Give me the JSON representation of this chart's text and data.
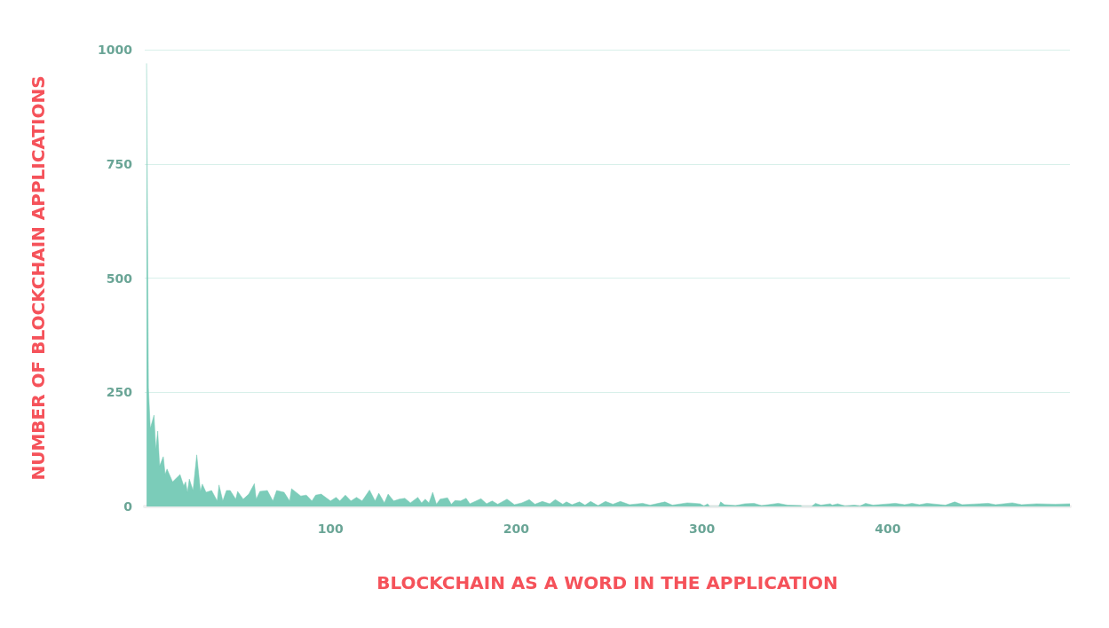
{
  "chart_data": {
    "type": "area",
    "xlabel": "BLOCKCHAIN AS A WORD IN THE APPLICATION",
    "ylabel": "NUMBER OF BLOCKCHAIN APPLICATIONS",
    "x": [
      1,
      2,
      3,
      5,
      6,
      7,
      8,
      10,
      11,
      12,
      15,
      19,
      21,
      22,
      23,
      24,
      26,
      28,
      30,
      31,
      33,
      36,
      39,
      40,
      42,
      44,
      46,
      49,
      50,
      53,
      56,
      59,
      60,
      62,
      66,
      69,
      71,
      75,
      78,
      79,
      84,
      87,
      90,
      92,
      95,
      100,
      103,
      105,
      108,
      111,
      114,
      117,
      121,
      124,
      126,
      129,
      131,
      134,
      137,
      140,
      143,
      147,
      149,
      151,
      153,
      155,
      157,
      159,
      163,
      165,
      167,
      170,
      173,
      175,
      181,
      184,
      187,
      190,
      195,
      199,
      203,
      207,
      210,
      214,
      218,
      221,
      225,
      227,
      230,
      234,
      237,
      240,
      244,
      248,
      252,
      256,
      261,
      268,
      272,
      280,
      284,
      292,
      299,
      301,
      303,
      304,
      309,
      310,
      312,
      318,
      323,
      328,
      332,
      341,
      346,
      353,
      354,
      359,
      361,
      364,
      369,
      370,
      373,
      377,
      382,
      385,
      388,
      392,
      404,
      409,
      413,
      417,
      421,
      431,
      436,
      440,
      454,
      458,
      467,
      472,
      480,
      490,
      498
    ],
    "series": [
      {
        "color": "#74c9b5",
        "values": [
          970,
          260,
          171,
          200,
          124,
          165,
          89,
          109,
          70,
          82,
          54,
          70,
          45,
          54,
          31,
          60,
          35,
          113,
          33,
          49,
          31,
          35,
          12,
          47,
          12,
          35,
          35,
          16,
          33,
          16,
          27,
          50,
          16,
          33,
          35,
          12,
          35,
          31,
          12,
          39,
          23,
          25,
          12,
          25,
          27,
          12,
          20,
          12,
          25,
          12,
          20,
          12,
          36,
          12,
          29,
          8,
          27,
          12,
          16,
          18,
          8,
          20,
          8,
          16,
          8,
          31,
          5,
          16,
          19,
          5,
          13,
          12,
          18,
          6,
          17,
          6,
          12,
          5,
          16,
          4,
          8,
          15,
          5,
          11,
          6,
          15,
          5,
          10,
          4,
          10,
          3,
          11,
          2,
          11,
          5,
          11,
          4,
          7,
          3,
          10,
          3,
          8,
          6,
          1,
          6,
          0,
          0,
          10,
          4,
          2,
          6,
          7,
          2,
          7,
          3,
          2,
          0,
          0,
          7,
          3,
          6,
          3,
          6,
          1,
          3,
          1,
          7,
          3,
          7,
          4,
          7,
          4,
          7,
          3,
          10,
          4,
          7,
          4,
          8,
          4,
          6,
          5,
          6
        ]
      }
    ],
    "xlim": [
      0,
      498
    ],
    "xticks": [
      100,
      200,
      300,
      400
    ],
    "ylim": [
      0,
      1000
    ],
    "yticks": [
      0,
      250,
      500,
      750,
      1000
    ],
    "grid": "y",
    "marker": "none"
  }
}
